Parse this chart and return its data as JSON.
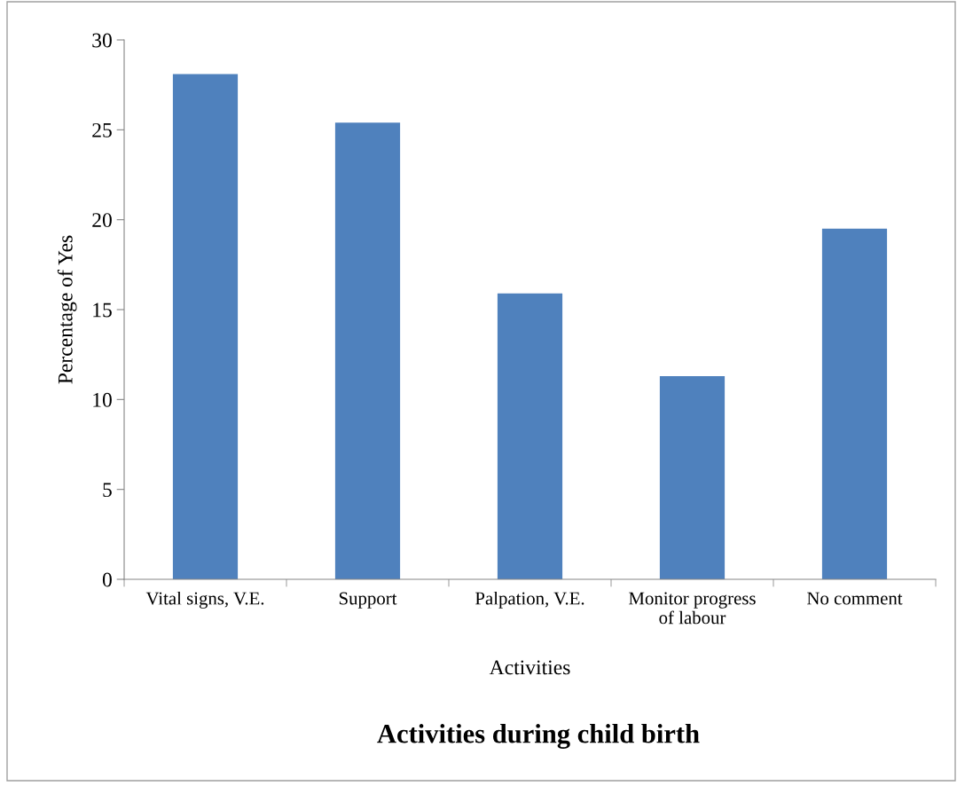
{
  "chart_data": {
    "type": "bar",
    "title": "Activities during child birth",
    "xlabel": "Activities",
    "ylabel": "Percentage of Yes",
    "categories": [
      "Vital signs, V.E.",
      "Support",
      "Palpation, V.E.",
      "Monitor progress\nof labour",
      "No comment"
    ],
    "values": [
      28.1,
      25.4,
      15.9,
      11.3,
      19.5
    ],
    "color": "#4f81bd",
    "ylim": [
      0,
      30
    ],
    "yticks": [
      0,
      5,
      10,
      15,
      20,
      25,
      30
    ],
    "grid": false,
    "legend": false
  }
}
